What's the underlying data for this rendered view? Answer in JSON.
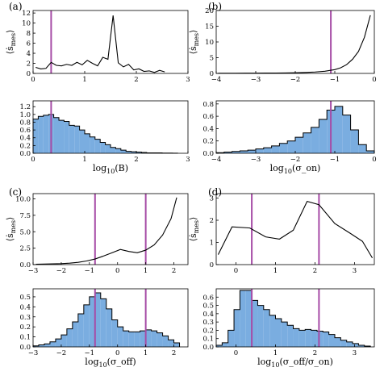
{
  "panels": [
    {
      "id": "a",
      "label": "(a)",
      "xlabel": "log",
      "xlabel_sub": "10",
      "xlabel_tail": "(B)",
      "ylabel": "⟨ṡ",
      "ylabel_sub": "mes",
      "ylabel_tail": "⟩",
      "vlines": [
        0.35
      ],
      "top": {
        "type": "line",
        "xlim": [
          0,
          3
        ],
        "ylim": [
          0,
          12.5
        ],
        "xticks": [
          0,
          1,
          2,
          3
        ],
        "xtick_labels": [
          "0",
          "1",
          "2",
          "3"
        ],
        "yticks": [
          0,
          2,
          4,
          6,
          8,
          10,
          12
        ],
        "ytick_labels": [
          "0",
          "2",
          "4",
          "6",
          "8",
          "10",
          "12"
        ],
        "x": [
          0.05,
          0.15,
          0.25,
          0.35,
          0.45,
          0.55,
          0.65,
          0.75,
          0.85,
          0.95,
          1.05,
          1.15,
          1.25,
          1.35,
          1.45,
          1.55,
          1.65,
          1.75,
          1.85,
          1.95,
          2.05,
          2.15,
          2.25,
          2.35,
          2.45,
          2.55
        ],
        "y": [
          1.2,
          0.9,
          1.0,
          2.2,
          1.6,
          1.5,
          1.8,
          1.6,
          2.2,
          1.7,
          2.6,
          2.0,
          1.5,
          3.2,
          2.8,
          11.5,
          2.1,
          1.3,
          1.8,
          0.7,
          0.9,
          0.4,
          0.5,
          0.2,
          0.6,
          0.3
        ]
      },
      "bottom": {
        "type": "histogram",
        "xlim": [
          0,
          3
        ],
        "ylim": [
          0,
          1.35
        ],
        "xticks": [
          0,
          1,
          2,
          3
        ],
        "xtick_labels": [
          "0",
          "1",
          "2",
          "3"
        ],
        "yticks": [
          0,
          0.2,
          0.4,
          0.6,
          0.8,
          1.0,
          1.2
        ],
        "ytick_labels": [
          "0.0",
          "0.2",
          "0.4",
          "0.6",
          "0.8",
          "1.0",
          "1.2"
        ],
        "edges": [
          0,
          0.1,
          0.2,
          0.3,
          0.4,
          0.5,
          0.6,
          0.7,
          0.8,
          0.9,
          1.0,
          1.1,
          1.2,
          1.3,
          1.4,
          1.5,
          1.6,
          1.7,
          1.8,
          1.9,
          2.0,
          2.1,
          2.2,
          2.3,
          2.4,
          2.5,
          2.6,
          2.7,
          2.8
        ],
        "values": [
          0.88,
          0.95,
          0.98,
          1.0,
          0.92,
          0.85,
          0.82,
          0.72,
          0.7,
          0.6,
          0.5,
          0.42,
          0.36,
          0.28,
          0.22,
          0.15,
          0.12,
          0.08,
          0.05,
          0.04,
          0.03,
          0.02,
          0.01,
          0.01,
          0.01,
          0.005,
          0.004,
          0.003
        ]
      }
    },
    {
      "id": "b",
      "label": "(b)",
      "xlabel": "log",
      "xlabel_sub": "10",
      "xlabel_tail": "(σ_on)",
      "ylabel": "⟨ṡ",
      "ylabel_sub": "mes",
      "ylabel_tail": "⟩",
      "vlines": [
        -1.1
      ],
      "top": {
        "type": "line",
        "xlim": [
          -4,
          0
        ],
        "ylim": [
          0,
          20
        ],
        "xticks": [
          -4,
          -3,
          -2,
          -1,
          0
        ],
        "xtick_labels": [
          "−4",
          "−3",
          "−2",
          "−1",
          "0"
        ],
        "yticks": [
          0,
          5,
          10,
          15,
          20
        ],
        "ytick_labels": [
          "0",
          "5",
          "10",
          "15",
          "20"
        ],
        "x": [
          -3.95,
          -3.75,
          -3.5,
          -3.25,
          -3.0,
          -2.75,
          -2.5,
          -2.25,
          -2.0,
          -1.75,
          -1.5,
          -1.25,
          -1.0,
          -0.85,
          -0.7,
          -0.55,
          -0.4,
          -0.25,
          -0.1
        ],
        "y": [
          0.05,
          0.05,
          0.06,
          0.07,
          0.08,
          0.1,
          0.12,
          0.15,
          0.2,
          0.3,
          0.45,
          0.7,
          1.2,
          1.8,
          2.8,
          4.5,
          7.0,
          11.5,
          18.5
        ]
      },
      "bottom": {
        "type": "histogram",
        "xlim": [
          -4,
          0
        ],
        "ylim": [
          0,
          0.85
        ],
        "xticks": [
          -4,
          -3,
          -2,
          -1,
          0
        ],
        "xtick_labels": [
          "−4",
          "−3",
          "−2",
          "−1",
          "0"
        ],
        "yticks": [
          0,
          0.2,
          0.4,
          0.6,
          0.8
        ],
        "ytick_labels": [
          "0.0",
          "0.2",
          "0.4",
          "0.6",
          "0.8"
        ],
        "edges": [
          -4.0,
          -3.8,
          -3.6,
          -3.4,
          -3.2,
          -3.0,
          -2.8,
          -2.6,
          -2.4,
          -2.2,
          -2.0,
          -1.8,
          -1.6,
          -1.4,
          -1.2,
          -1.0,
          -0.8,
          -0.6,
          -0.4,
          -0.2,
          0.0
        ],
        "values": [
          0.01,
          0.02,
          0.03,
          0.04,
          0.05,
          0.07,
          0.09,
          0.12,
          0.16,
          0.2,
          0.26,
          0.33,
          0.42,
          0.55,
          0.7,
          0.76,
          0.62,
          0.38,
          0.14,
          0.04
        ]
      }
    },
    {
      "id": "c",
      "label": "(c)",
      "xlabel": "log",
      "xlabel_sub": "10",
      "xlabel_tail": "(σ_off)",
      "ylabel": "⟨ṡ",
      "ylabel_sub": "mes",
      "ylabel_tail": "⟩",
      "vlines": [
        -0.8,
        1.0
      ],
      "top": {
        "type": "line",
        "xlim": [
          -3,
          2.5
        ],
        "ylim": [
          0,
          10.8
        ],
        "xticks": [
          -3,
          -2,
          -1,
          0,
          1,
          2
        ],
        "xtick_labels": [
          "−3",
          "−2",
          "−1",
          "0",
          "1",
          "2"
        ],
        "yticks": [
          0,
          2.5,
          5.0,
          7.5,
          10.0
        ],
        "ytick_labels": [
          "0.0",
          "2.5",
          "5.0",
          "7.5",
          "10.0"
        ],
        "x": [
          -2.9,
          -2.6,
          -2.3,
          -2.0,
          -1.7,
          -1.4,
          -1.1,
          -0.8,
          -0.5,
          -0.2,
          0.1,
          0.4,
          0.7,
          1.0,
          1.3,
          1.6,
          1.9,
          2.1
        ],
        "y": [
          0.05,
          0.08,
          0.12,
          0.15,
          0.22,
          0.35,
          0.55,
          0.85,
          1.3,
          1.8,
          2.3,
          2.0,
          1.8,
          2.2,
          3.0,
          4.5,
          7.0,
          10.2
        ]
      },
      "bottom": {
        "type": "histogram",
        "xlim": [
          -3,
          2.5
        ],
        "ylim": [
          0,
          0.58
        ],
        "xticks": [
          -3,
          -2,
          -1,
          0,
          1,
          2
        ],
        "xtick_labels": [
          "−3",
          "−2",
          "−1",
          "0",
          "1",
          "2"
        ],
        "yticks": [
          0,
          0.1,
          0.2,
          0.3,
          0.4,
          0.5
        ],
        "ytick_labels": [
          "0.0",
          "0.1",
          "0.2",
          "0.3",
          "0.4",
          "0.5"
        ],
        "edges": [
          -3.0,
          -2.8,
          -2.6,
          -2.4,
          -2.2,
          -2.0,
          -1.8,
          -1.6,
          -1.4,
          -1.2,
          -1.0,
          -0.8,
          -0.6,
          -0.4,
          -0.2,
          0.0,
          0.2,
          0.4,
          0.6,
          0.8,
          1.0,
          1.2,
          1.4,
          1.6,
          1.8,
          2.0,
          2.2
        ],
        "values": [
          0.01,
          0.02,
          0.03,
          0.05,
          0.08,
          0.12,
          0.18,
          0.25,
          0.33,
          0.42,
          0.5,
          0.54,
          0.48,
          0.38,
          0.27,
          0.2,
          0.16,
          0.15,
          0.15,
          0.16,
          0.17,
          0.16,
          0.14,
          0.11,
          0.07,
          0.04
        ]
      }
    },
    {
      "id": "d",
      "label": "(d)",
      "xlabel": "log",
      "xlabel_sub": "10",
      "xlabel_tail": "(σ_off/σ_on)",
      "ylabel": "⟨ṡ",
      "ylabel_sub": "mes",
      "ylabel_tail": "⟩",
      "vlines": [
        0.4,
        2.1
      ],
      "top": {
        "type": "line",
        "xlim": [
          -0.5,
          3.5
        ],
        "ylim": [
          0,
          3.2
        ],
        "xticks": [
          0,
          1,
          2,
          3
        ],
        "xtick_labels": [
          "0",
          "1",
          "2",
          "3"
        ],
        "yticks": [
          0,
          1,
          2,
          3
        ],
        "ytick_labels": [
          "0",
          "1",
          "2",
          "3"
        ],
        "x": [
          -0.45,
          -0.1,
          0.35,
          0.75,
          1.1,
          1.45,
          1.8,
          2.1,
          2.5,
          2.9,
          3.2,
          3.45
        ],
        "y": [
          0.45,
          1.7,
          1.65,
          1.25,
          1.15,
          1.55,
          2.85,
          2.7,
          1.85,
          1.4,
          1.05,
          0.3
        ]
      },
      "bottom": {
        "type": "histogram",
        "xlim": [
          -0.5,
          3.5
        ],
        "ylim": [
          0,
          0.7
        ],
        "xticks": [
          0,
          1,
          2,
          3
        ],
        "xtick_labels": [
          "0",
          "1",
          "2",
          "3"
        ],
        "yticks": [
          0,
          0.1,
          0.2,
          0.3,
          0.4,
          0.5,
          0.6
        ],
        "ytick_labels": [
          "0.0",
          "0.1",
          "0.2",
          "0.3",
          "0.4",
          "0.5",
          "0.6"
        ],
        "edges": [
          -0.5,
          -0.35,
          -0.2,
          -0.05,
          0.1,
          0.25,
          0.4,
          0.55,
          0.7,
          0.85,
          1.0,
          1.15,
          1.3,
          1.45,
          1.6,
          1.75,
          1.9,
          2.05,
          2.2,
          2.35,
          2.5,
          2.65,
          2.8,
          2.95,
          3.1,
          3.25,
          3.4
        ],
        "values": [
          0.02,
          0.05,
          0.2,
          0.45,
          0.68,
          0.68,
          0.56,
          0.5,
          0.45,
          0.38,
          0.34,
          0.3,
          0.26,
          0.22,
          0.2,
          0.21,
          0.2,
          0.19,
          0.18,
          0.15,
          0.11,
          0.08,
          0.06,
          0.04,
          0.02,
          0.01
        ]
      }
    }
  ],
  "colors": {
    "vline": "#a64ca6",
    "bar_fill": "#7aade0",
    "line": "#000000"
  }
}
